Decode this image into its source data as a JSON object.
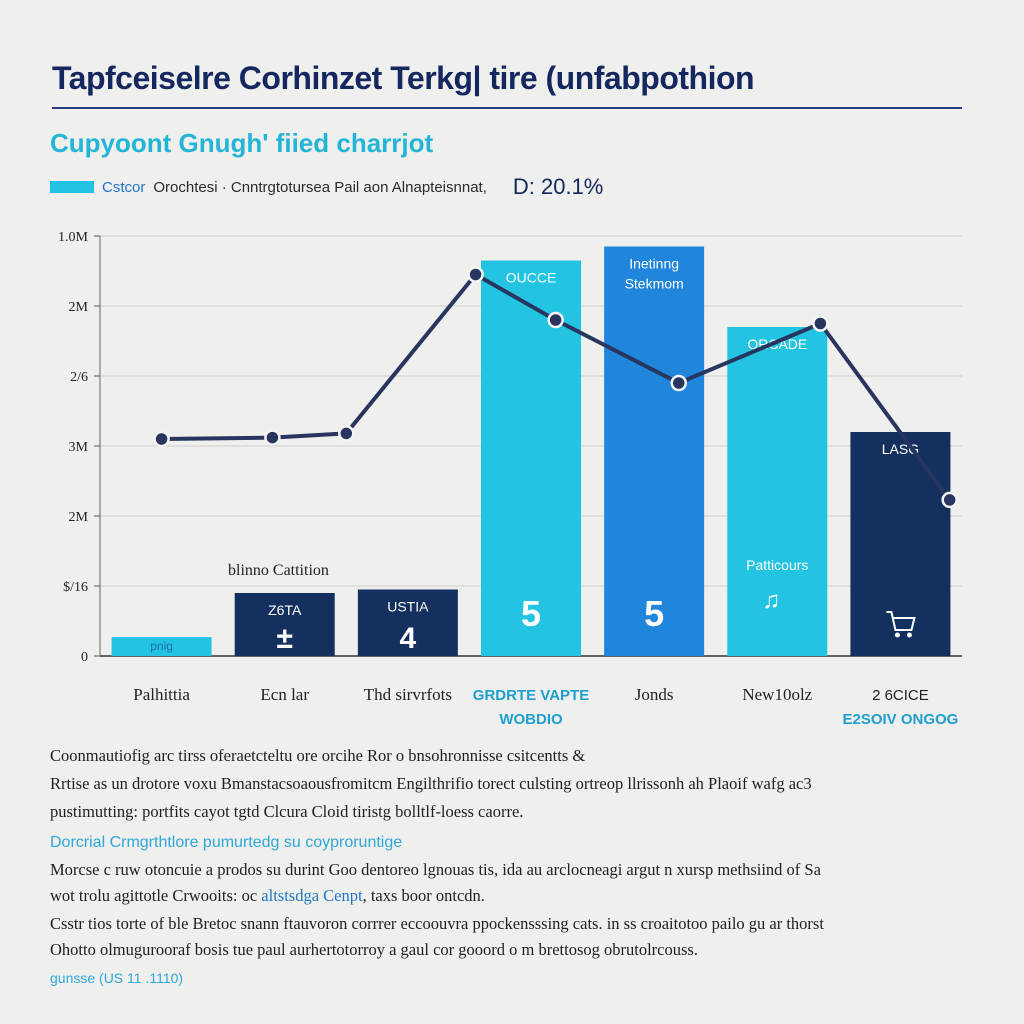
{
  "header": {
    "title": "Tapfceiselre Corhinzet Terkg| tire (unfabpothion",
    "subtitle": "Cupyoont Gnugh' fiied charrjot"
  },
  "legend": {
    "key": "Cstcor",
    "description": "Orochtesi · Cnntrgtotursea Pail aon Alnapteisnnat,",
    "stat": "D:  20.1%"
  },
  "colors": {
    "navy": "#14305e",
    "cyan": "#22c4e2",
    "blue": "#1f86dc",
    "line": "#27355f"
  },
  "chart_data": {
    "type": "bar",
    "y_tick_labels": [
      "0",
      "$/16",
      "2M",
      "3M",
      "2/6",
      "2M",
      "1.0M"
    ],
    "categories": [
      "Palhittia",
      "Ecn lar",
      "Thd sirvrfots",
      "GRDRTE VAPTE",
      "Jonds",
      "New10olz",
      "2 6CICE"
    ],
    "category_sublabels": [
      "",
      "",
      "",
      "WOBDIO",
      "",
      "",
      "E2SOIV ONGOG"
    ],
    "ylim": [
      0,
      6
    ],
    "bars": [
      {
        "value": 0.27,
        "color": "cyan",
        "label_top": "pnig",
        "label_main": "",
        "icon": ""
      },
      {
        "value": 0.9,
        "color": "navy",
        "label_top": "Z6TA",
        "label_main": "±",
        "icon": ""
      },
      {
        "value": 0.95,
        "color": "navy",
        "label_top": "USTIA",
        "label_main": "4",
        "icon": ""
      },
      {
        "value": 5.65,
        "color": "cyan",
        "label_top": "OUCCE",
        "label_main": "5",
        "icon": ""
      },
      {
        "value": 5.85,
        "color": "blue",
        "label_top": "Inetinng Stekmom",
        "label_main": "5",
        "icon": ""
      },
      {
        "value": 4.7,
        "color": "cyan",
        "label_top": "ORCADE",
        "label_main": "",
        "icon": "hand-icon"
      },
      {
        "value": 3.2,
        "color": "navy",
        "label_top": "LASG",
        "label_main": "",
        "icon": "cart-icon"
      }
    ],
    "bar_annotation": "blinno Cattition",
    "bar_inner_note": "Patticours",
    "line": {
      "x": [
        0.5,
        1.4,
        2.0,
        3.05,
        3.7,
        4.7,
        5.85,
        6.9
      ],
      "values": [
        3.1,
        3.12,
        3.18,
        5.45,
        4.8,
        3.9,
        4.75,
        2.23
      ]
    },
    "grid": true
  },
  "body": {
    "paragraph1": [
      "Coonmautiofig arc tirss oferaetcteltu ore orcihe Ror o bnsohronnisse csitcentts &",
      "Rrtise as un drotore voxu Bmanstacsoaousfromitcm Engilthrifio torect culsting ortreop llrissonh ah Plaoif wafg ac3",
      "pustimutting: portfits cayot tgtd Clcura Cloid tiristg bolltlf-loess caorre."
    ],
    "heading2": "Dorcrial Crmgrthtlore pumurtedg su coyproruntige",
    "paragraph2": [
      "Morcse c ruw otoncuie a prodos su durint Goo dentoreo lgnouas tis, ida au arclocneagi argut n xursp methsiind of Sa",
      "wot trolu agittotle Crwooits: oc ",
      ", taxs boor ontcdn."
    ],
    "paragraph2_highlight": "altstsdga Cenpt",
    "paragraph3": [
      "Csstr tios torte of ble Bretoc snann ftauvoron corrrer eccoouvra ppockensssing cats. in ss croaitotoo pailo gu ar thorst",
      "Ohotto olmugurooraf bosis tue  paul aurhertotorroy a gaul cor gooord o m brettosog obrutolrcouss."
    ],
    "source": "gunsse (US 11 .1110)"
  }
}
